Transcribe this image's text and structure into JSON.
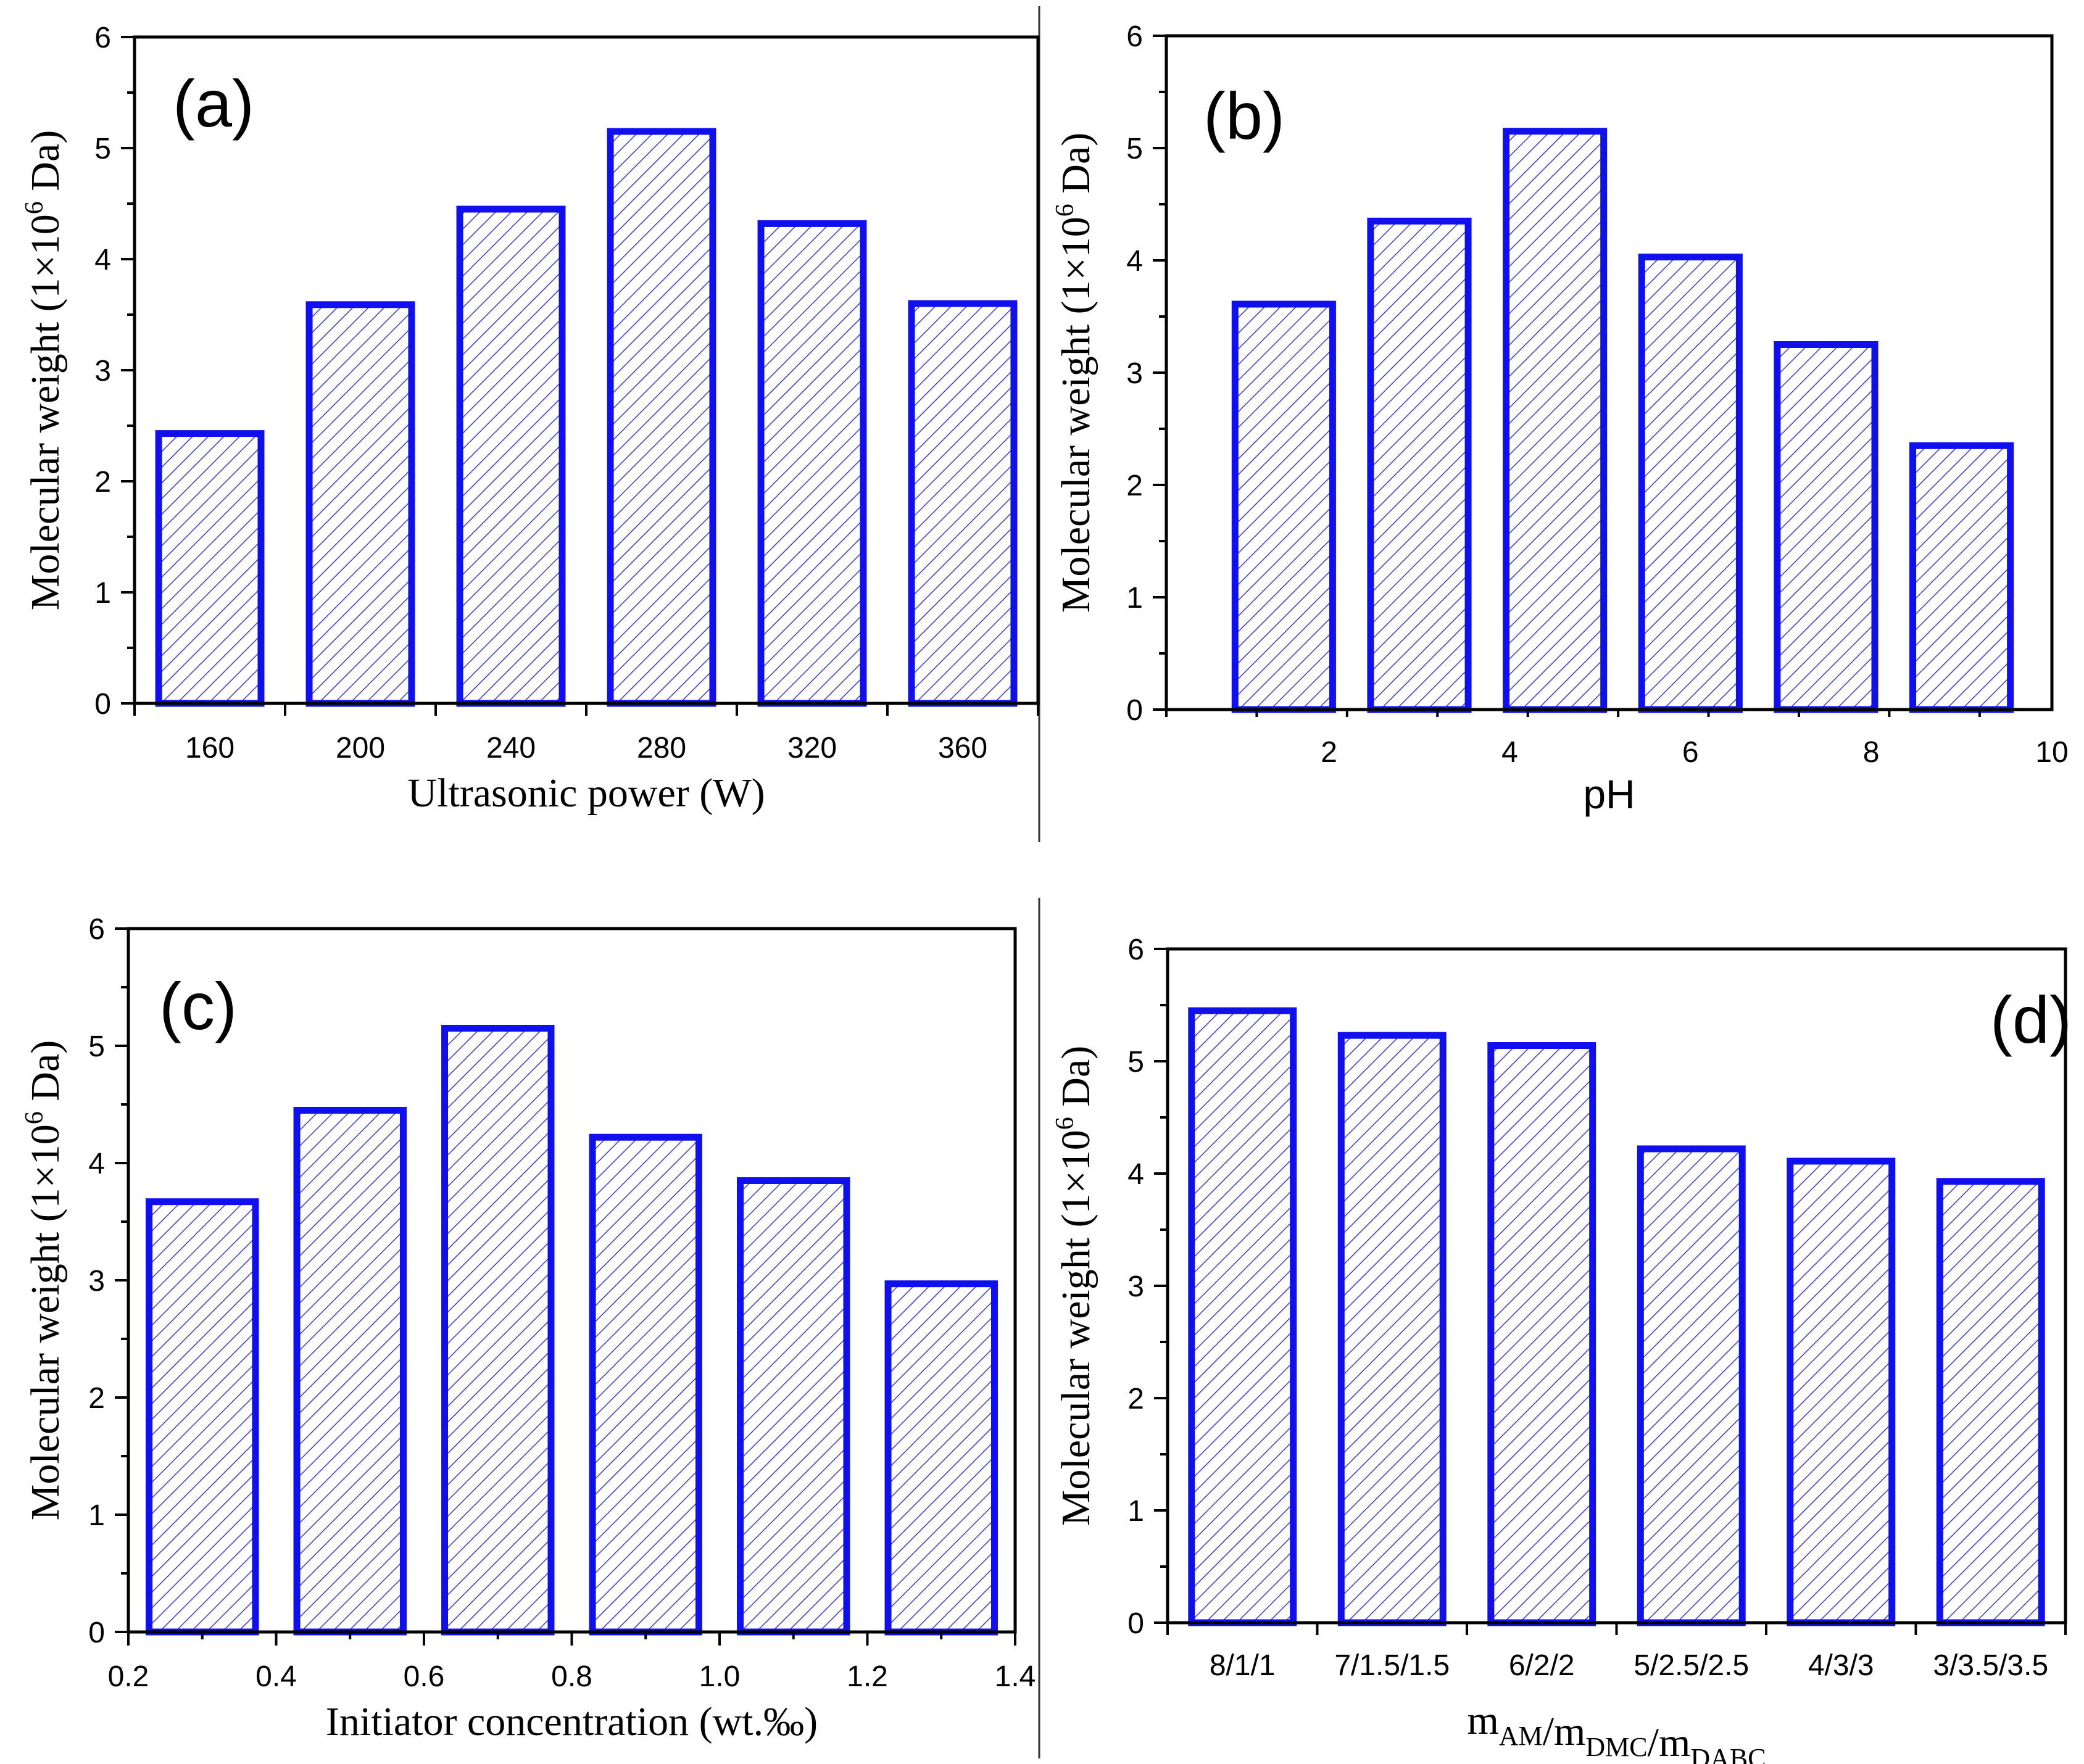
{
  "colors": {
    "bar_stroke": "#1010ee",
    "hatch": "#3a3ad8"
  },
  "chart_data": [
    {
      "id": "a",
      "type": "bar",
      "panel_label": "(a)",
      "xlabel": "Ultrasonic power (W)",
      "ylabel_main": "Molecular weight (1×10",
      "ylabel_sup": "6",
      "ylabel_end": " Da)",
      "ylim": [
        0,
        6
      ],
      "yticks": [
        "0",
        "1",
        "2",
        "3",
        "4",
        "5",
        "6"
      ],
      "categories": [
        "160",
        "200",
        "240",
        "280",
        "320",
        "360"
      ],
      "values": [
        2.43,
        3.59,
        4.45,
        5.15,
        4.32,
        3.6
      ]
    },
    {
      "id": "b",
      "type": "bar",
      "panel_label": "(b)",
      "xlabel": "pH",
      "ylabel_main": "Molecular weight (1×10",
      "ylabel_sup": "6",
      "ylabel_end": " Da)",
      "ylim": [
        0,
        6
      ],
      "yticks": [
        "0",
        "1",
        "2",
        "3",
        "4",
        "5",
        "6"
      ],
      "xlim": [
        0.2,
        10
      ],
      "xticks": [
        "2",
        "4",
        "6",
        "8",
        "10"
      ],
      "x": [
        1.5,
        3,
        4.5,
        6,
        7.5,
        9
      ],
      "values": [
        3.61,
        4.35,
        5.15,
        4.03,
        3.25,
        2.35
      ]
    },
    {
      "id": "c",
      "type": "bar",
      "panel_label": "(c)",
      "xlabel": "Initiator concentration (wt.‰)",
      "ylabel_main": "Molecular weight (1×10",
      "ylabel_sup": "6",
      "ylabel_end": " Da)",
      "ylim": [
        0,
        6
      ],
      "yticks": [
        "0",
        "1",
        "2",
        "3",
        "4",
        "5",
        "6"
      ],
      "xlim": [
        0.2,
        1.4
      ],
      "xticks": [
        "0.2",
        "0.4",
        "0.6",
        "0.8",
        "1.0",
        "1.2",
        "1.4"
      ],
      "x": [
        0.3,
        0.5,
        0.7,
        0.9,
        1.1,
        1.3
      ],
      "values": [
        3.67,
        4.45,
        5.15,
        4.22,
        3.85,
        2.97
      ]
    },
    {
      "id": "d",
      "type": "bar",
      "panel_label": "(d)",
      "xlabel_base": [
        "m",
        "/m",
        "/m"
      ],
      "xlabel_subs": [
        "AM",
        "DMC",
        "DABC"
      ],
      "ylabel_main": "Molecular weight (1×10",
      "ylabel_sup": "6",
      "ylabel_end": " Da)",
      "ylim": [
        0,
        6
      ],
      "yticks": [
        "0",
        "1",
        "2",
        "3",
        "4",
        "5",
        "6"
      ],
      "categories": [
        "8/1/1",
        "7/1.5/1.5",
        "6/2/2",
        "5/2.5/2.5",
        "4/3/3",
        "3/3.5/3.5"
      ],
      "values": [
        5.45,
        5.23,
        5.14,
        4.22,
        4.11,
        3.93
      ]
    }
  ]
}
